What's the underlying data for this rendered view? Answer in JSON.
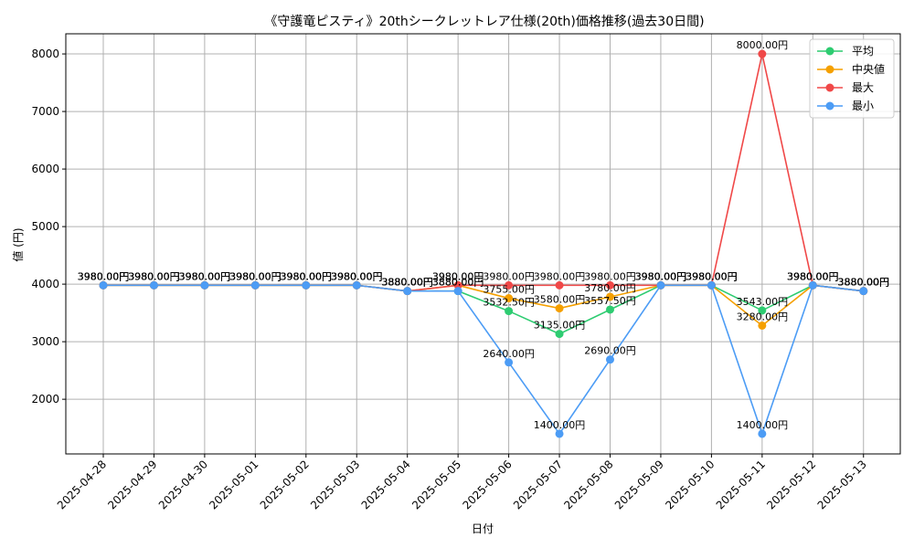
{
  "chart_data": {
    "type": "line",
    "title": "《守護竜ピスティ》20thシークレットレア仕様(20th)価格推移(過去30日間)",
    "xlabel": "日付",
    "ylabel": "値 (円)",
    "ylim": [
      1050,
      8350
    ],
    "yticks": [
      2000,
      3000,
      4000,
      5000,
      6000,
      7000,
      8000
    ],
    "grid": true,
    "legend": "top-right",
    "categories": [
      "2025-04-28",
      "2025-04-29",
      "2025-04-30",
      "2025-05-01",
      "2025-05-02",
      "2025-05-03",
      "2025-05-04",
      "2025-05-05",
      "2025-05-06",
      "2025-05-07",
      "2025-05-08",
      "2025-05-09",
      "2025-05-10",
      "2025-05-11",
      "2025-05-12",
      "2025-05-13"
    ],
    "series": [
      {
        "name": "平均",
        "color": "#2ecc71",
        "values": [
          3980,
          3980,
          3980,
          3980,
          3980,
          3980,
          3880,
          3880,
          3532.5,
          3135,
          3557.5,
          3980,
          3980,
          3543,
          3980,
          3880
        ],
        "labels": [
          "3980.00円",
          "3980.00円",
          "3980.00円",
          "3980.00円",
          "3980.00円",
          "3980.00円",
          "3880.00円",
          "3880.00円",
          "3532.50円",
          "3135.00円",
          "3557.50円",
          "3980.00円",
          "3980.00円",
          "3543.00円",
          "3980.00円",
          "3880.00円"
        ]
      },
      {
        "name": "中央値",
        "color": "#f5a000",
        "values": [
          3980,
          3980,
          3980,
          3980,
          3980,
          3980,
          3880,
          3980,
          3755,
          3580,
          3780,
          3980,
          3980,
          3280,
          3980,
          3880
        ],
        "labels": [
          "3980.00円",
          "3980.00円",
          "3980.00円",
          "3980.00円",
          "3980.00円",
          "3980.00円",
          "3880.00円",
          "3980.00円",
          "3755.00円",
          "3580.00円",
          "3780.00円",
          "3980.00円",
          "3980.00円",
          "3280.00円",
          "3980.00円",
          "3880.00円"
        ]
      },
      {
        "name": "最大",
        "color": "#f04848",
        "values": [
          3980,
          3980,
          3980,
          3980,
          3980,
          3980,
          3880,
          3980,
          3980,
          3980,
          3980,
          3980,
          3980,
          8000,
          3980,
          3880
        ],
        "labels": [
          "3980.00円",
          "3980.00円",
          "3980.00円",
          "3980.00円",
          "3980.00円",
          "3980.00円",
          "3880.00円",
          "3980.00円",
          "3980.00円",
          "3980.00円",
          "3980.00円",
          "3980.00円",
          "3980.00円",
          "8000.00円",
          "3980.00円",
          "3880.00円"
        ]
      },
      {
        "name": "最小",
        "color": "#4c9cf5",
        "values": [
          3980,
          3980,
          3980,
          3980,
          3980,
          3980,
          3880,
          3880,
          2640,
          1400,
          2690,
          3980,
          3980,
          1400,
          3980,
          3880
        ],
        "labels": [
          "3980.00円",
          "3980.00円",
          "3980.00円",
          "3980.00円",
          "3980.00円",
          "3980.00円",
          "3880.00円",
          "3880.00円",
          "2640.00円",
          "1400.00円",
          "2690.00円",
          "3980.00円",
          "3980.00円",
          "1400.00円",
          "3980.00円",
          "3880.00円"
        ]
      }
    ]
  }
}
